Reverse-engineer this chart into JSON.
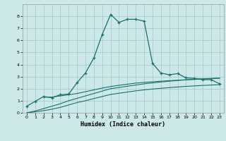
{
  "xlabel": "Humidex (Indice chaleur)",
  "bg_color": "#cce8e8",
  "grid_color": "#aacccc",
  "line_color": "#1a7070",
  "xlim": [
    -0.5,
    23.5
  ],
  "ylim": [
    0,
    9
  ],
  "xticks": [
    0,
    1,
    2,
    3,
    4,
    5,
    6,
    7,
    8,
    9,
    10,
    11,
    12,
    13,
    14,
    15,
    16,
    17,
    18,
    19,
    20,
    21,
    22,
    23
  ],
  "yticks": [
    0,
    1,
    2,
    3,
    4,
    5,
    6,
    7,
    8
  ],
  "main_line_x": [
    0,
    1,
    2,
    3,
    4,
    5,
    6,
    7,
    8,
    9,
    10,
    11,
    12,
    13,
    14,
    15,
    16,
    17,
    18,
    19,
    20,
    21,
    22,
    23
  ],
  "main_line_y": [
    0.55,
    0.95,
    1.35,
    1.25,
    1.5,
    1.55,
    2.5,
    3.3,
    4.55,
    6.5,
    8.15,
    7.5,
    7.75,
    7.75,
    7.6,
    4.1,
    3.3,
    3.15,
    3.25,
    2.9,
    2.85,
    2.75,
    2.75,
    2.4
  ],
  "line2_x": [
    0,
    1,
    2,
    3,
    4,
    5,
    6,
    7,
    8,
    9,
    10,
    11,
    12,
    13,
    14,
    15,
    16,
    17,
    18,
    19,
    20,
    21,
    22,
    23
  ],
  "line2_y": [
    0.0,
    0.15,
    0.35,
    0.55,
    0.75,
    1.0,
    1.2,
    1.4,
    1.6,
    1.8,
    2.0,
    2.1,
    2.2,
    2.3,
    2.4,
    2.48,
    2.55,
    2.62,
    2.68,
    2.73,
    2.78,
    2.82,
    2.85,
    2.88
  ],
  "line3_x": [
    0,
    1,
    2,
    3,
    4,
    5,
    6,
    7,
    8,
    9,
    10,
    11,
    12,
    13,
    14,
    15,
    16,
    17,
    18,
    19,
    20,
    21,
    22,
    23
  ],
  "line3_y": [
    0.0,
    0.08,
    0.18,
    0.3,
    0.45,
    0.65,
    0.85,
    1.0,
    1.18,
    1.35,
    1.52,
    1.62,
    1.72,
    1.82,
    1.9,
    1.97,
    2.03,
    2.09,
    2.14,
    2.19,
    2.23,
    2.27,
    2.3,
    2.33
  ],
  "line4_x": [
    2,
    3,
    4,
    5,
    6,
    7,
    8,
    9,
    10,
    11,
    12,
    13,
    14,
    15,
    16,
    17,
    18,
    19,
    20,
    21,
    22,
    23
  ],
  "line4_y": [
    1.3,
    1.3,
    1.4,
    1.5,
    1.6,
    1.75,
    1.9,
    2.05,
    2.18,
    2.28,
    2.37,
    2.46,
    2.52,
    2.57,
    2.62,
    2.66,
    2.7,
    2.74,
    2.77,
    2.8,
    2.83,
    2.86
  ]
}
